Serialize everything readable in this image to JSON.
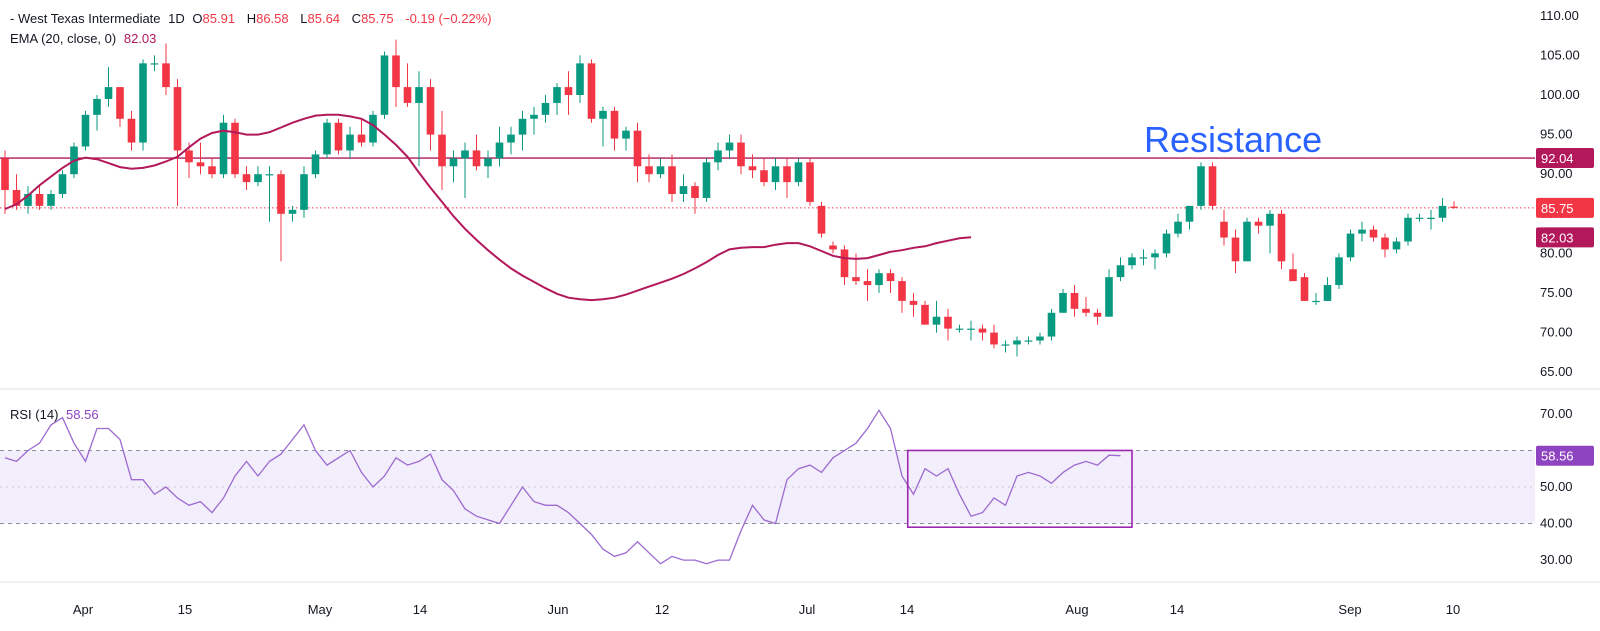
{
  "header": {
    "symbol": "- West Texas Intermediate",
    "interval": "1D",
    "open_label": "O",
    "open": "85.91",
    "high_label": "H",
    "high": "86.58",
    "low_label": "L",
    "low": "85.64",
    "close_label": "C",
    "close": "85.75",
    "change": "-0.19 (−0.22%)",
    "ema_label": "EMA (20, close, 0)",
    "ema_value": "82.03",
    "rsi_label": "RSI (14)",
    "rsi_value": "58.56"
  },
  "annotation": {
    "text": "Resistance"
  },
  "price_axis": {
    "ticks": [
      "110.00",
      "105.00",
      "100.00",
      "95.00",
      "90.00",
      "85.00",
      "80.00",
      "75.00",
      "70.00",
      "65.00"
    ],
    "badges": [
      {
        "text": "92.04",
        "color": "#b2185a"
      },
      {
        "text": "85.75",
        "color": "#f23645"
      },
      {
        "text": "82.03",
        "color": "#b2185a"
      }
    ]
  },
  "rsi_axis": {
    "ticks": [
      "70.00",
      "50.00",
      "40.00",
      "30.00"
    ],
    "badge": {
      "text": "58.56",
      "color": "#8e44c0"
    }
  },
  "x_axis": {
    "ticks": [
      "Apr",
      "15",
      "May",
      "14",
      "Jun",
      "12",
      "Jul",
      "14",
      "Aug",
      "14",
      "Sep",
      "10"
    ]
  },
  "colors": {
    "up": "#089981",
    "down": "#f23645",
    "ema": "#b2185a",
    "resistance": "#b2185a",
    "rsi_line": "#9c6ad0",
    "rsi_box": "#9c27b0",
    "rsi_band": "#f3eefb",
    "annotation": "#2962ff"
  },
  "chart_data": {
    "type": "candlestick",
    "title": "West Texas Intermediate, 1D",
    "price_range": [
      63,
      112
    ],
    "resistance": 92.04,
    "last_close": 85.75,
    "candles": [
      [
        92,
        93,
        85,
        88
      ],
      [
        88,
        90,
        85.5,
        86
      ],
      [
        86,
        88.5,
        85,
        87.5
      ],
      [
        87.5,
        88.5,
        85.5,
        86
      ],
      [
        86,
        88,
        85.5,
        87.5
      ],
      [
        87.5,
        90.5,
        87,
        90
      ],
      [
        90,
        94,
        89.5,
        93.5
      ],
      [
        93.5,
        98,
        93,
        97.5
      ],
      [
        97.5,
        100,
        95.5,
        99.5
      ],
      [
        99.5,
        103.5,
        98.5,
        101
      ],
      [
        101,
        101,
        96,
        97
      ],
      [
        97,
        98,
        93,
        94
      ],
      [
        94,
        104.5,
        93,
        104
      ],
      [
        104,
        105,
        103,
        104
      ],
      [
        104,
        106.5,
        100,
        101
      ],
      [
        101,
        102,
        86,
        93
      ],
      [
        93,
        94,
        89.5,
        91.5
      ],
      [
        91.5,
        94,
        90,
        91
      ],
      [
        91,
        92,
        89.5,
        90
      ],
      [
        90,
        97.5,
        89.5,
        96.5
      ],
      [
        96.5,
        97,
        89.5,
        90
      ],
      [
        90,
        91,
        88,
        89
      ],
      [
        89,
        91,
        88.5,
        90
      ],
      [
        90,
        91,
        84,
        90
      ],
      [
        90,
        90.5,
        79,
        85
      ],
      [
        85,
        86,
        84,
        85.5
      ],
      [
        85.5,
        91,
        84.5,
        90
      ],
      [
        90,
        93,
        89.5,
        92.5
      ],
      [
        92.5,
        97,
        92,
        96.5
      ],
      [
        96.5,
        97,
        92.5,
        93
      ],
      [
        93,
        96,
        92,
        95
      ],
      [
        95,
        97,
        93.5,
        94
      ],
      [
        94,
        98,
        93.5,
        97.5
      ],
      [
        97.5,
        105.5,
        97,
        105
      ],
      [
        105,
        107,
        98.5,
        101
      ],
      [
        101,
        104,
        98.5,
        99
      ],
      [
        99,
        103,
        91,
        101
      ],
      [
        101,
        102,
        93,
        95
      ],
      [
        95,
        98,
        88,
        91
      ],
      [
        91,
        93,
        89,
        92
      ],
      [
        92,
        94,
        87,
        93
      ],
      [
        93,
        95,
        90.5,
        91
      ],
      [
        91,
        93,
        89.5,
        92
      ],
      [
        92,
        96,
        91,
        94
      ],
      [
        94,
        96,
        92.5,
        95
      ],
      [
        95,
        98,
        93,
        97
      ],
      [
        97,
        98.5,
        95,
        97.5
      ],
      [
        97.5,
        100,
        96.5,
        99
      ],
      [
        99,
        101.5,
        97.5,
        101
      ],
      [
        101,
        103,
        97.5,
        100
      ],
      [
        100,
        105,
        99,
        104
      ],
      [
        104,
        104.5,
        96.5,
        97
      ],
      [
        97,
        98.5,
        93.5,
        98
      ],
      [
        98,
        98.5,
        93,
        94.5
      ],
      [
        94.5,
        96,
        93,
        95.5
      ],
      [
        95.5,
        96.5,
        89,
        91
      ],
      [
        91,
        92.5,
        89,
        90
      ],
      [
        90,
        92,
        89.5,
        91
      ],
      [
        91,
        92.5,
        86.5,
        87.5
      ],
      [
        87.5,
        90,
        86.5,
        88.5
      ],
      [
        88.5,
        89,
        85,
        87
      ],
      [
        87,
        92,
        86.5,
        91.5
      ],
      [
        91.5,
        94,
        90.5,
        93
      ],
      [
        93,
        95,
        92,
        94
      ],
      [
        94,
        95,
        90,
        91
      ],
      [
        91,
        92.5,
        89.5,
        90.5
      ],
      [
        90.5,
        92,
        88.5,
        89
      ],
      [
        89,
        92,
        88,
        91
      ],
      [
        91,
        92,
        87,
        89
      ],
      [
        89,
        92,
        88.5,
        91.5
      ],
      [
        91.5,
        92,
        86,
        86.5
      ],
      [
        86,
        86.5,
        82,
        82.5
      ],
      [
        81,
        81.5,
        80,
        80.5
      ],
      [
        80.5,
        81,
        76,
        77
      ],
      [
        77,
        80,
        76,
        76.5
      ],
      [
        76.5,
        78,
        74,
        76
      ],
      [
        76,
        78,
        75,
        77.5
      ],
      [
        77.5,
        78,
        75,
        76.5
      ],
      [
        76.5,
        77,
        72.5,
        74
      ],
      [
        74,
        75,
        72,
        73.5
      ],
      [
        73.5,
        74,
        71,
        71
      ],
      [
        71,
        74,
        70,
        72
      ],
      [
        72,
        73,
        69,
        70.5
      ],
      [
        70.5,
        71,
        70,
        70.5
      ],
      [
        70.5,
        71.5,
        69,
        70.5
      ],
      [
        70.5,
        71,
        69,
        70
      ],
      [
        70,
        71,
        68,
        68.5
      ],
      [
        68.5,
        69,
        67.5,
        68.5
      ],
      [
        68.5,
        69.5,
        67,
        69
      ],
      [
        69,
        69.5,
        68.5,
        69
      ],
      [
        69,
        70,
        68.5,
        69.5
      ],
      [
        69.5,
        73,
        69,
        72.5
      ],
      [
        72.5,
        75.5,
        72.5,
        75
      ],
      [
        75,
        76,
        72,
        73
      ],
      [
        73,
        74.5,
        72,
        72.5
      ],
      [
        72.5,
        73,
        71,
        72
      ],
      [
        72,
        78,
        72,
        77
      ],
      [
        77,
        79.5,
        76.5,
        78.5
      ],
      [
        78.5,
        80,
        78,
        79.5
      ],
      [
        79.5,
        80.5,
        78.5,
        79.5
      ],
      [
        79.5,
        80.5,
        78,
        80
      ],
      [
        80,
        83,
        79.5,
        82.5
      ],
      [
        82.5,
        85,
        82,
        84
      ],
      [
        84,
        86,
        83,
        86
      ],
      [
        86,
        91.5,
        85.5,
        91
      ],
      [
        91,
        91.5,
        85.5,
        86
      ],
      [
        84,
        85.5,
        81,
        82
      ],
      [
        82,
        83,
        77.5,
        79
      ],
      [
        79,
        84.5,
        79,
        84
      ],
      [
        84,
        84.5,
        82.5,
        83.5
      ],
      [
        83.5,
        85.5,
        80,
        85
      ],
      [
        85,
        85.5,
        78,
        79
      ],
      [
        78,
        80,
        76.5,
        76.5
      ],
      [
        77,
        77.5,
        74,
        74
      ],
      [
        74,
        75,
        73.5,
        74
      ],
      [
        74,
        77,
        74,
        76
      ],
      [
        76,
        80,
        75.5,
        79.5
      ],
      [
        79.5,
        83,
        79,
        82.5
      ],
      [
        82.5,
        84,
        81.5,
        83
      ],
      [
        83,
        83.5,
        81.5,
        82
      ],
      [
        82,
        82.5,
        79.5,
        80.5
      ],
      [
        80.5,
        82,
        80,
        81.5
      ],
      [
        81.5,
        85,
        81,
        84.5
      ],
      [
        84.5,
        85,
        84,
        84.5
      ],
      [
        84.5,
        85.5,
        83,
        84.5
      ],
      [
        84.5,
        87,
        84,
        86
      ],
      [
        85.91,
        86.58,
        85.64,
        85.75
      ]
    ],
    "ema": [
      85.6,
      86.2,
      87.3,
      88.6,
      89.7,
      90.8,
      91.7,
      92.1,
      91.9,
      91.4,
      90.9,
      90.7,
      90.8,
      91.1,
      91.6,
      92.2,
      93.4,
      94.5,
      95.2,
      95.5,
      95.3,
      95.0,
      95.0,
      95.3,
      95.9,
      96.5,
      97.0,
      97.4,
      97.5,
      97.5,
      97.3,
      97.0,
      96.2,
      95.0,
      93.7,
      92.2,
      90.2,
      88.3,
      86.5,
      84.7,
      83.1,
      81.7,
      80.4,
      79.2,
      78.1,
      77.2,
      76.4,
      75.6,
      74.9,
      74.4,
      74.2,
      74.1,
      74.2,
      74.4,
      74.8,
      75.3,
      75.8,
      76.3,
      76.8,
      77.4,
      78.1,
      78.9,
      79.8,
      80.5,
      80.7,
      80.8,
      80.8,
      81.1,
      81.3,
      81.3,
      80.9,
      80.3,
      79.7,
      79.4,
      79.3,
      79.4,
      79.8,
      80.2,
      80.4,
      80.7,
      80.9,
      81.3,
      81.6,
      81.9,
      82.03
    ],
    "rsi": [
      {
        "t": 0,
        "v": 58
      },
      {
        "t": 2,
        "v": 57
      },
      {
        "t": 4,
        "v": 60
      },
      {
        "t": 6,
        "v": 62
      },
      {
        "t": 8,
        "v": 67
      },
      {
        "t": 10,
        "v": 69
      },
      {
        "t": 12,
        "v": 62
      },
      {
        "t": 14,
        "v": 57
      },
      {
        "t": 16,
        "v": 66
      },
      {
        "t": 18,
        "v": 66
      },
      {
        "t": 20,
        "v": 63
      },
      {
        "t": 22,
        "v": 52
      },
      {
        "t": 24,
        "v": 52
      },
      {
        "t": 26,
        "v": 48
      },
      {
        "t": 28,
        "v": 50
      },
      {
        "t": 30,
        "v": 47
      },
      {
        "t": 32,
        "v": 45
      },
      {
        "t": 34,
        "v": 46
      },
      {
        "t": 36,
        "v": 43
      },
      {
        "t": 38,
        "v": 47
      },
      {
        "t": 40,
        "v": 53
      },
      {
        "t": 42,
        "v": 57
      },
      {
        "t": 44,
        "v": 53
      },
      {
        "t": 46,
        "v": 57
      },
      {
        "t": 48,
        "v": 59
      },
      {
        "t": 50,
        "v": 63
      },
      {
        "t": 52,
        "v": 67
      },
      {
        "t": 54,
        "v": 60
      },
      {
        "t": 56,
        "v": 56
      },
      {
        "t": 58,
        "v": 58
      },
      {
        "t": 60,
        "v": 60
      },
      {
        "t": 62,
        "v": 54
      },
      {
        "t": 64,
        "v": 50
      },
      {
        "t": 66,
        "v": 53
      },
      {
        "t": 68,
        "v": 58
      },
      {
        "t": 70,
        "v": 56
      },
      {
        "t": 72,
        "v": 57
      },
      {
        "t": 74,
        "v": 59
      },
      {
        "t": 76,
        "v": 52
      },
      {
        "t": 78,
        "v": 49
      },
      {
        "t": 80,
        "v": 44
      },
      {
        "t": 82,
        "v": 42
      },
      {
        "t": 84,
        "v": 41
      },
      {
        "t": 86,
        "v": 40
      },
      {
        "t": 88,
        "v": 45
      },
      {
        "t": 90,
        "v": 50
      },
      {
        "t": 92,
        "v": 46
      },
      {
        "t": 94,
        "v": 45
      },
      {
        "t": 96,
        "v": 45
      },
      {
        "t": 98,
        "v": 43
      },
      {
        "t": 100,
        "v": 40
      },
      {
        "t": 102,
        "v": 37
      },
      {
        "t": 104,
        "v": 33
      },
      {
        "t": 106,
        "v": 31
      },
      {
        "t": 108,
        "v": 32
      },
      {
        "t": 110,
        "v": 35
      },
      {
        "t": 112,
        "v": 32
      },
      {
        "t": 114,
        "v": 29
      },
      {
        "t": 116,
        "v": 31
      },
      {
        "t": 118,
        "v": 30
      },
      {
        "t": 120,
        "v": 30
      },
      {
        "t": 122,
        "v": 29
      },
      {
        "t": 124,
        "v": 30
      },
      {
        "t": 126,
        "v": 30
      },
      {
        "t": 128,
        "v": 38
      },
      {
        "t": 130,
        "v": 45
      },
      {
        "t": 132,
        "v": 41
      },
      {
        "t": 134,
        "v": 40
      },
      {
        "t": 136,
        "v": 52
      },
      {
        "t": 138,
        "v": 55
      },
      {
        "t": 140,
        "v": 56
      },
      {
        "t": 142,
        "v": 54
      },
      {
        "t": 144,
        "v": 58
      },
      {
        "t": 146,
        "v": 60
      },
      {
        "t": 148,
        "v": 62
      },
      {
        "t": 150,
        "v": 66
      },
      {
        "t": 152,
        "v": 71
      },
      {
        "t": 154,
        "v": 66
      },
      {
        "t": 156,
        "v": 53
      },
      {
        "t": 158,
        "v": 48
      },
      {
        "t": 160,
        "v": 55
      },
      {
        "t": 162,
        "v": 53
      },
      {
        "t": 164,
        "v": 55
      },
      {
        "t": 166,
        "v": 48
      },
      {
        "t": 168,
        "v": 42
      },
      {
        "t": 170,
        "v": 43
      },
      {
        "t": 172,
        "v": 47
      },
      {
        "t": 174,
        "v": 45
      },
      {
        "t": 176,
        "v": 53
      },
      {
        "t": 178,
        "v": 54
      },
      {
        "t": 180,
        "v": 53
      },
      {
        "t": 182,
        "v": 51
      },
      {
        "t": 184,
        "v": 54
      },
      {
        "t": 186,
        "v": 56
      },
      {
        "t": 188,
        "v": 57
      },
      {
        "t": 190,
        "v": 56
      },
      {
        "t": 192,
        "v": 58.7
      },
      {
        "t": 194,
        "v": 58.56
      }
    ],
    "rsi_range": [
      24,
      76
    ],
    "rsi_levels": [
      60,
      40
    ],
    "rsi_box": {
      "t_start": 157,
      "t_end": 196,
      "v_high": 60,
      "v_low": 39
    }
  }
}
